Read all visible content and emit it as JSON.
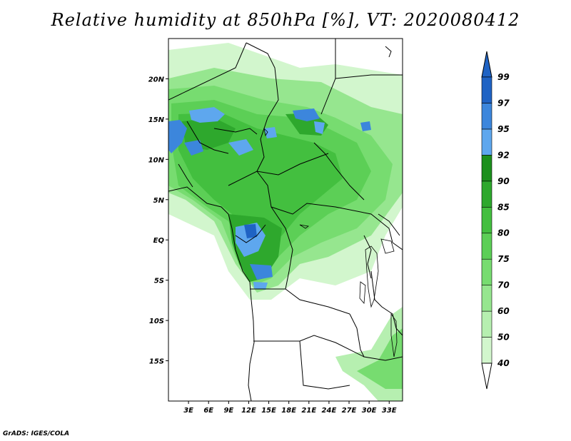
{
  "title": "Relative humidity at 850hPa [%], VT: 2020080412",
  "credit": "GrADS: IGES/COLA",
  "map": {
    "lon_range": [
      0,
      35
    ],
    "lat_range": [
      -20,
      25
    ],
    "x_ticks": [
      "3E",
      "6E",
      "9E",
      "12E",
      "15E",
      "18E",
      "21E",
      "24E",
      "27E",
      "30E",
      "33E"
    ],
    "y_ticks": [
      "20N",
      "15N",
      "10N",
      "5N",
      "EQ",
      "5S",
      "10S",
      "15S"
    ]
  },
  "colorbar": {
    "levels": [
      "40",
      "50",
      "60",
      "70",
      "75",
      "80",
      "85",
      "90",
      "92",
      "95",
      "97",
      "99"
    ],
    "colors": [
      "#e9fbe6",
      "#d2f6cd",
      "#b6efb0",
      "#96e68f",
      "#77dc70",
      "#5ccf56",
      "#43bf3f",
      "#2ea82d",
      "#1c901d",
      "#5ea7ee",
      "#3c86dc",
      "#1f63c4"
    ]
  }
}
